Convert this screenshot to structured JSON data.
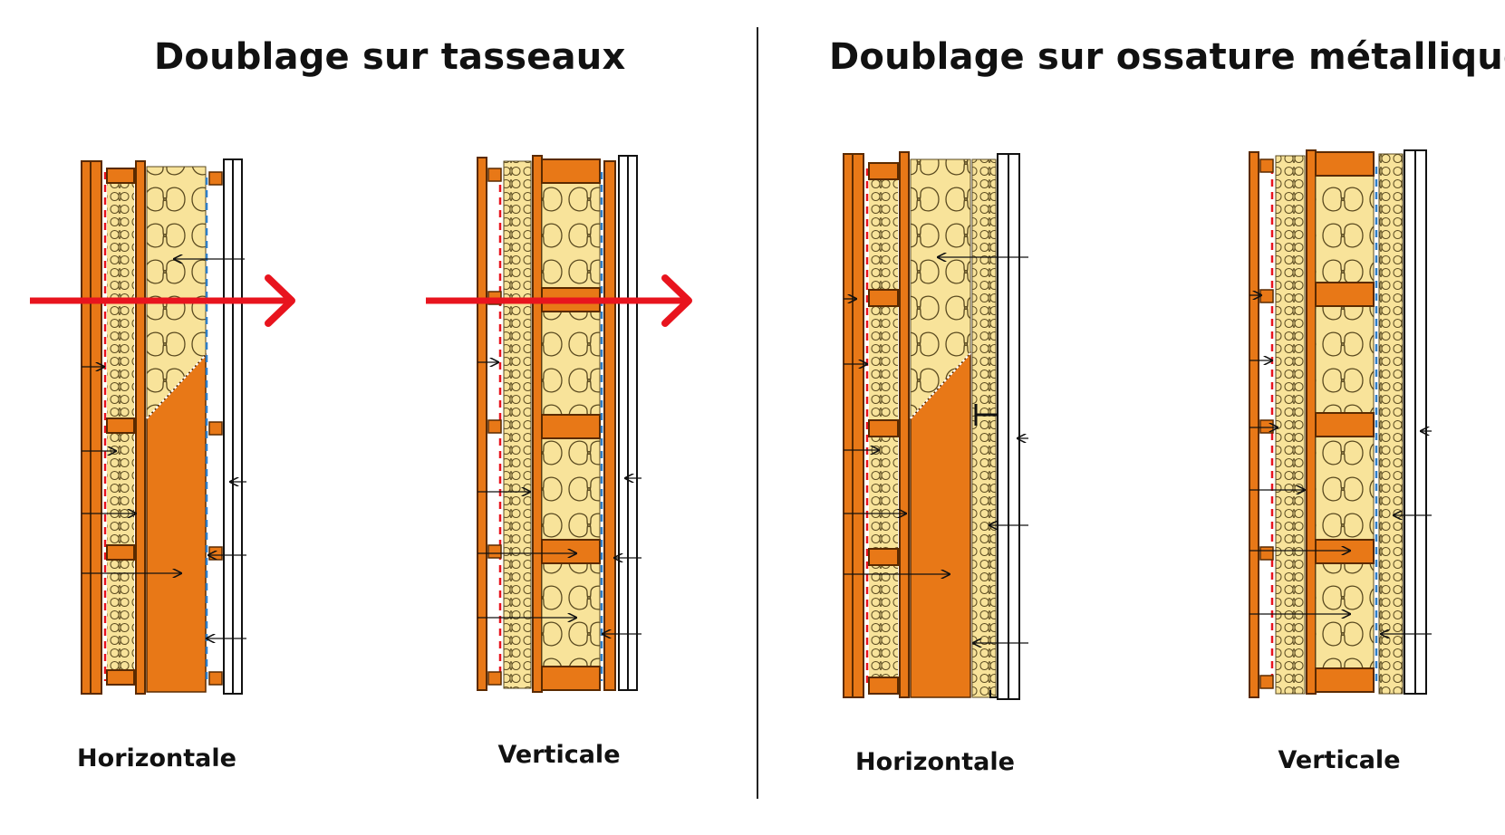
{
  "titles": {
    "left": "Doublage sur tasseaux",
    "right": "Doublage sur ossature métallique"
  },
  "labels": {
    "tasseaux_horizontal": "Horizontale",
    "tasseaux_vertical": "Verticale",
    "metal_horizontal": "Horizontale",
    "metal_vertical": "Verticale"
  },
  "colors": {
    "wood": "#E87817",
    "wood_dark": "#5A2A00",
    "insulation": "#F8E39A",
    "insulation_line": "#5A4A20",
    "heat_arrow": "#E8141E",
    "vapor_barrier": "#2E7EC8",
    "red_membrane": "#E8141E"
  }
}
